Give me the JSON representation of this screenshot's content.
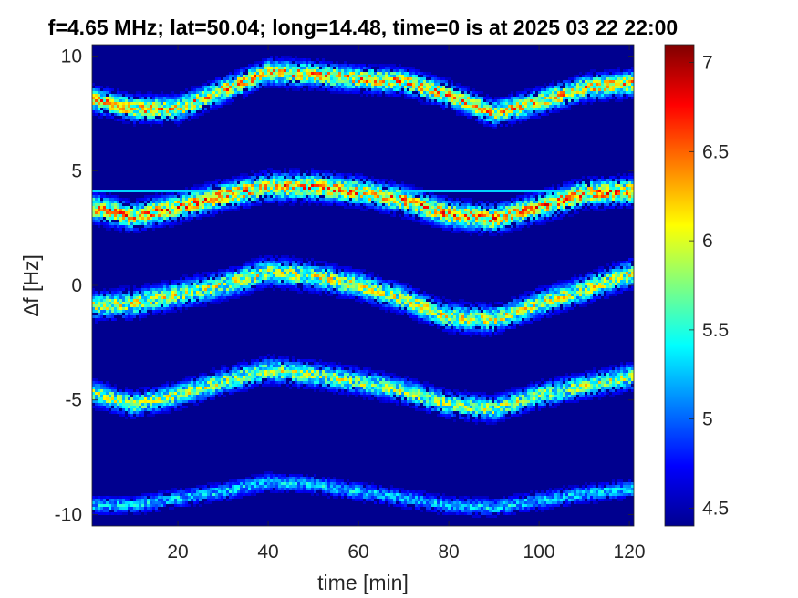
{
  "chart_data": {
    "type": "heatmap",
    "title": "f=4.65 MHz;  lat=50.04; long=14.48, time=0 is at 2025 03 22 22:00",
    "xlabel": "time [min]",
    "ylabel": "∆f [Hz]",
    "xlim": [
      1,
      121
    ],
    "ylim": [
      -10.5,
      10.5
    ],
    "x_ticks": [
      20,
      40,
      60,
      80,
      100,
      120
    ],
    "y_ticks": [
      -10,
      -5,
      0,
      5,
      10
    ],
    "x_tick_labels": [
      "20",
      "40",
      "60",
      "80",
      "100",
      "120"
    ],
    "y_tick_labels": [
      "-10",
      "-5",
      "0",
      "5",
      "10"
    ],
    "colorbar": {
      "range": [
        4.4,
        7.1
      ],
      "ticks": [
        4.5,
        5,
        5.5,
        6,
        6.5,
        7
      ],
      "tick_labels": [
        "4.5",
        "5",
        "5.5",
        "6",
        "6.5",
        "7"
      ],
      "colormap": "jet"
    },
    "background_value": 4.45,
    "steady_line": {
      "delta_f": 4.1,
      "value": 5.3
    },
    "traces": [
      {
        "time_min": [
          1,
          10,
          20,
          30,
          40,
          50,
          60,
          70,
          80,
          90,
          100,
          110,
          120
        ],
        "delta_f": [
          8.1,
          7.7,
          7.7,
          8.5,
          9.3,
          9.2,
          9.0,
          8.9,
          8.3,
          7.5,
          8.0,
          8.6,
          8.8
        ],
        "peak_value": 6.4,
        "width_hz": 0.55
      },
      {
        "time_min": [
          1,
          10,
          20,
          30,
          40,
          50,
          60,
          70,
          80,
          90,
          100,
          110,
          120
        ],
        "delta_f": [
          3.4,
          3.0,
          3.4,
          3.9,
          4.3,
          4.3,
          4.1,
          3.7,
          3.1,
          2.9,
          3.4,
          4.0,
          4.1
        ],
        "peak_value": 6.5,
        "width_hz": 0.6
      },
      {
        "time_min": [
          1,
          10,
          20,
          30,
          40,
          50,
          60,
          70,
          80,
          90,
          100,
          110,
          120
        ],
        "delta_f": [
          -0.9,
          -0.8,
          -0.4,
          0.0,
          0.6,
          0.4,
          0.0,
          -0.6,
          -1.4,
          -1.5,
          -0.8,
          -0.2,
          0.5
        ],
        "peak_value": 6.1,
        "width_hz": 0.6
      },
      {
        "time_min": [
          1,
          10,
          20,
          30,
          40,
          50,
          60,
          70,
          80,
          90,
          100,
          110,
          120
        ],
        "delta_f": [
          -4.7,
          -5.2,
          -4.8,
          -4.2,
          -3.7,
          -3.9,
          -4.2,
          -4.6,
          -5.2,
          -5.4,
          -4.8,
          -4.4,
          -4.0
        ],
        "peak_value": 6.0,
        "width_hz": 0.55
      },
      {
        "time_min": [
          1,
          10,
          20,
          30,
          40,
          50,
          60,
          70,
          80,
          90,
          100,
          110,
          120
        ],
        "delta_f": [
          -9.6,
          -9.6,
          -9.3,
          -9.0,
          -8.6,
          -8.7,
          -9.0,
          -9.3,
          -9.6,
          -9.7,
          -9.4,
          -9.1,
          -8.9
        ],
        "peak_value": 5.4,
        "width_hz": 0.4
      }
    ]
  }
}
